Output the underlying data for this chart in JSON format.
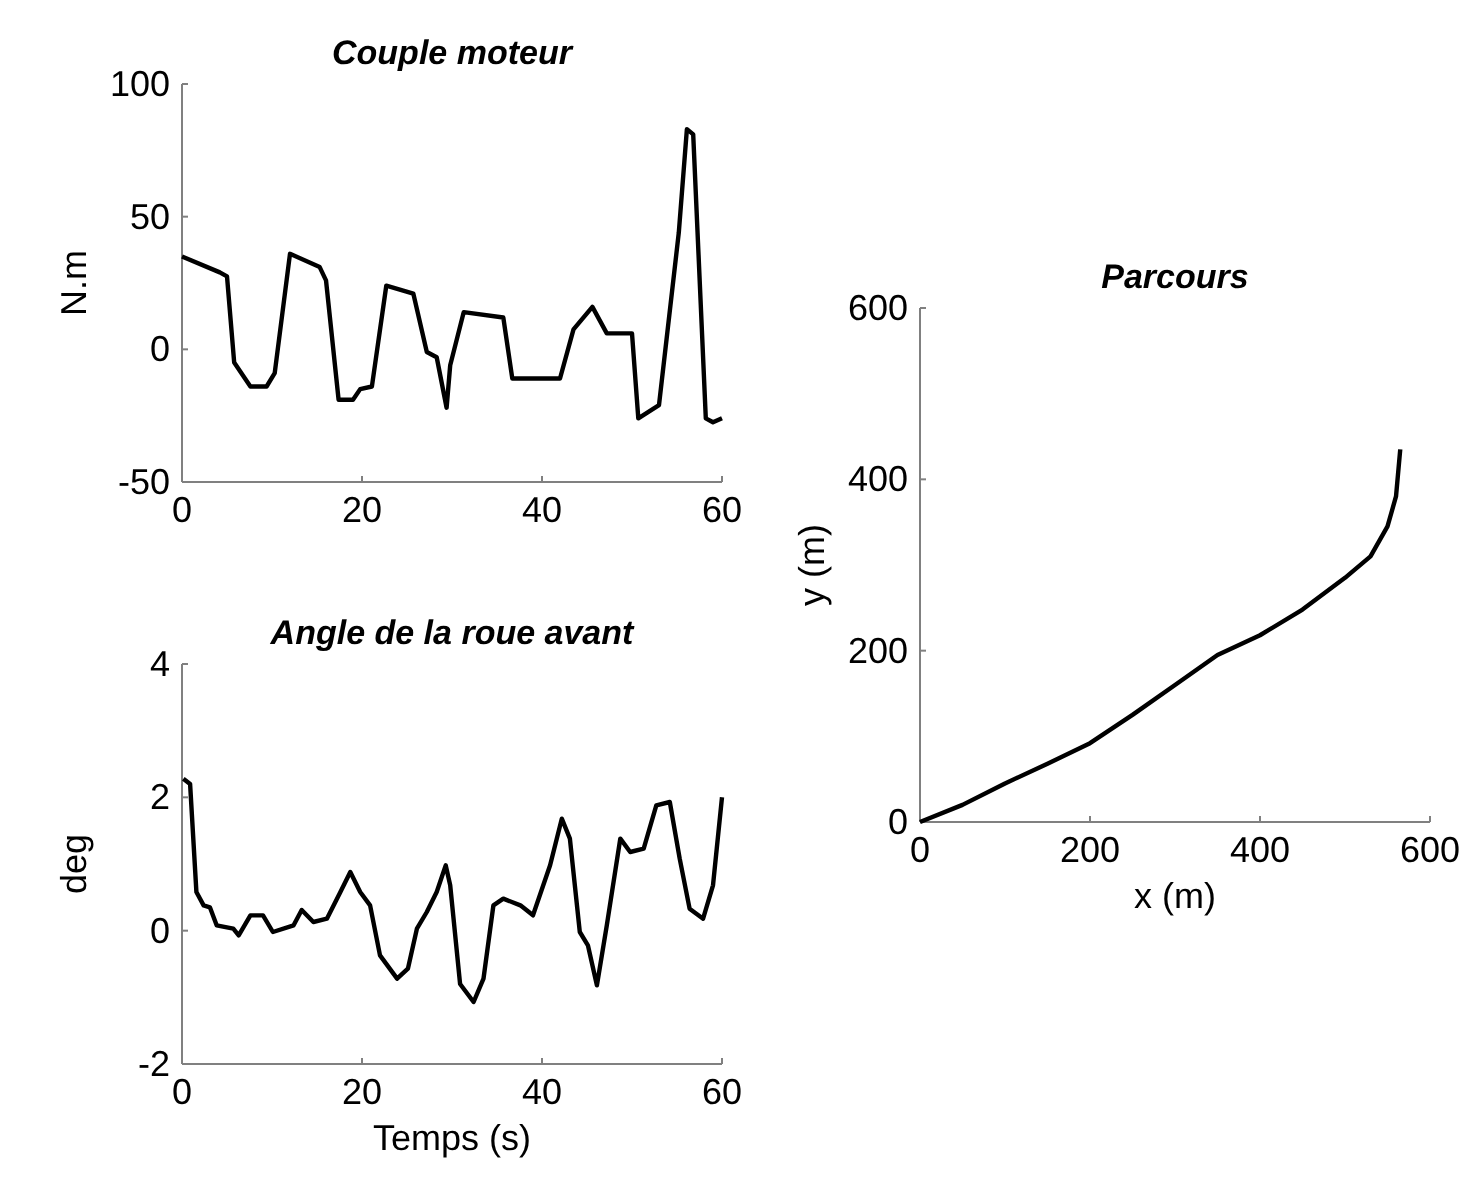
{
  "chart_data": [
    {
      "type": "line",
      "title": "Couple moteur",
      "ylabel": "N.m",
      "xlim": [
        0,
        60
      ],
      "xticks": [
        0,
        20,
        40,
        60
      ],
      "ylim": [
        -50,
        100
      ],
      "yticks": [
        -50,
        0,
        50,
        100
      ],
      "grid": false,
      "marker": "none",
      "line_style": "solid",
      "series": [
        {
          "color": "#000000",
          "x": [
            0,
            4.2,
            5,
            5.8,
            7.6,
            9.4,
            10.3,
            12,
            15.3,
            16,
            17.4,
            19,
            19.8,
            21.1,
            22.7,
            25.7,
            27.2,
            28.3,
            29.4,
            29.8,
            31.3,
            35.7,
            36.7,
            39,
            42,
            43.5,
            45.6,
            47.2,
            50,
            50.7,
            53,
            55.2,
            56.1,
            56.8,
            58.2,
            59,
            60
          ],
          "values": [
            35,
            29,
            27.5,
            -5,
            -14,
            -14,
            -9,
            36,
            31,
            26,
            -19,
            -19,
            -15,
            -14,
            24,
            21,
            -1,
            -3,
            -22,
            -6,
            14,
            12,
            -11,
            -11,
            -11,
            7.5,
            16,
            6,
            6,
            -26,
            -21,
            44,
            83,
            81,
            -26,
            -27.5,
            -26
          ]
        }
      ]
    },
    {
      "type": "line",
      "title": "Angle de la roue avant",
      "xlabel": "Temps (s)",
      "ylabel": "deg",
      "xlim": [
        0,
        60
      ],
      "xticks": [
        0,
        20,
        40,
        60
      ],
      "ylim": [
        -2,
        4
      ],
      "yticks": [
        -2,
        0,
        2,
        4
      ],
      "grid": false,
      "marker": "none",
      "line_style": "solid",
      "series": [
        {
          "color": "#000000",
          "x": [
            0.15,
            0.9,
            1.6,
            2.4,
            3.1,
            3.85,
            5.7,
            6.3,
            7.6,
            9,
            10.1,
            12.4,
            13.3,
            14.6,
            16.1,
            17.6,
            18.7,
            19.8,
            20.9,
            22,
            23.9,
            25.1,
            26.1,
            27.2,
            28.3,
            29.3,
            29.8,
            30.9,
            32.4,
            33.5,
            34.6,
            35.7,
            37.6,
            39,
            40.9,
            42.2,
            43.1,
            44.2,
            45.1,
            46.1,
            47.2,
            48.7,
            49.8,
            51.3,
            52.7,
            54.2,
            55.3,
            56.4,
            57.9,
            59,
            60
          ],
          "values": [
            2.28,
            2.2,
            0.58,
            0.38,
            0.35,
            0.08,
            0.03,
            -0.07,
            0.23,
            0.23,
            -0.02,
            0.08,
            0.31,
            0.13,
            0.18,
            0.58,
            0.88,
            0.58,
            0.38,
            -0.37,
            -0.72,
            -0.57,
            0.03,
            0.28,
            0.58,
            0.98,
            0.68,
            -0.8,
            -1.07,
            -0.72,
            0.38,
            0.48,
            0.38,
            0.23,
            0.98,
            1.68,
            1.38,
            -0.02,
            -0.22,
            -0.82,
            0.08,
            1.38,
            1.18,
            1.23,
            1.88,
            1.93,
            1.08,
            0.33,
            0.18,
            0.68,
            2.0
          ]
        }
      ]
    },
    {
      "type": "line",
      "title": "Parcours",
      "xlabel": "x (m)",
      "ylabel": "y (m)",
      "xlim": [
        0,
        600
      ],
      "xticks": [
        0,
        200,
        400,
        600
      ],
      "ylim": [
        0,
        600
      ],
      "yticks": [
        0,
        200,
        400,
        600
      ],
      "grid": false,
      "marker": "none",
      "line_style": "solid",
      "series": [
        {
          "color": "#000000",
          "x": [
            0,
            50,
            100,
            150,
            200,
            250,
            300,
            350,
            400,
            450,
            500,
            530,
            550,
            560,
            565
          ],
          "values": [
            0,
            20,
            45,
            68,
            92,
            125,
            160,
            195,
            218,
            248,
            285,
            310,
            345,
            380,
            435
          ]
        }
      ]
    }
  ]
}
